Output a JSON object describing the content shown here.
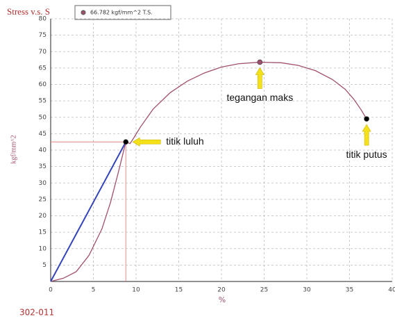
{
  "chart_data": {
    "type": "line",
    "title": "Stress v.s. S",
    "legend_label": "66.782 kgf/mm^2 T.S.",
    "y_label": "kgf/mm^2",
    "x_label": "%",
    "footer": "302-011",
    "xlim": [
      0,
      40
    ],
    "ylim": [
      0,
      80
    ],
    "xticks": [
      0,
      5,
      10,
      15,
      20,
      25,
      30,
      35,
      40
    ],
    "yticks": [
      5,
      10,
      15,
      20,
      25,
      30,
      35,
      40,
      45,
      50,
      55,
      60,
      65,
      70,
      75,
      80
    ],
    "grid": true,
    "series": [
      {
        "color": "#a0506e",
        "x": [
          0,
          1.5,
          3,
          4.5,
          6,
          7,
          8,
          8.8,
          9.3,
          9.8,
          10.5,
          12,
          14,
          16,
          18,
          20,
          22,
          24.5,
          27,
          29,
          31,
          33,
          34.5,
          35.5,
          36.3,
          37
        ],
        "values": [
          0,
          1,
          3,
          8,
          16,
          24,
          34,
          42.5,
          42,
          44,
          47,
          52.5,
          57.5,
          61,
          63.5,
          65.3,
          66.3,
          66.782,
          66.6,
          65.8,
          64.2,
          61.5,
          58.5,
          55.5,
          52.5,
          49.5
        ]
      },
      {
        "color": "#3344bb",
        "x": [
          0,
          8.8
        ],
        "values": [
          0,
          42.5
        ]
      }
    ],
    "points": [
      {
        "label": "titik luluh",
        "x": 8.8,
        "y": 42.5,
        "color": "#000000",
        "label_side": "right"
      },
      {
        "label": "tegangan maks",
        "x": 24.5,
        "y": 66.782,
        "color": "#a0506e",
        "label_side": "below"
      },
      {
        "label": "titik putus",
        "x": 37,
        "y": 49.5,
        "color": "#000000",
        "label_side": "below"
      }
    ],
    "arrow_color": "#f5e11a"
  }
}
